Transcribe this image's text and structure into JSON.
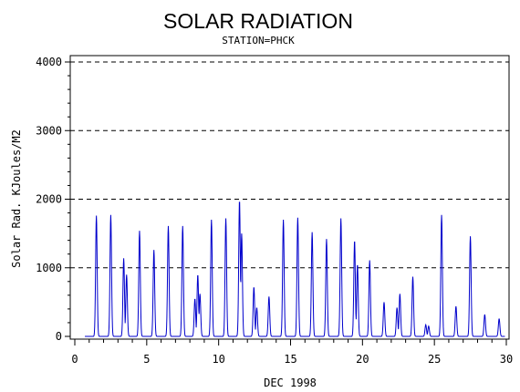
{
  "chart_data": {
    "type": "line",
    "title": "SOLAR RADIATION",
    "subtitle": "STATION=PHCK",
    "xlabel": "DEC 1998",
    "ylabel": "Solar Rad. KJoules/M2",
    "xlim": [
      0,
      30
    ],
    "ylim": [
      0,
      4000
    ],
    "x_ticks": [
      0,
      5,
      10,
      15,
      20,
      25,
      30
    ],
    "x_tick_labels": [
      "0",
      "5",
      "10",
      "15",
      "20",
      "25",
      "30"
    ],
    "y_ticks": [
      0,
      1000,
      2000,
      3000,
      4000
    ],
    "y_tick_labels": [
      "0",
      "1000",
      "2000",
      "3000",
      "4000"
    ],
    "grid": "horizontal dashed at y-ticks",
    "line_color": "#0000cc",
    "daily_peaks": [
      {
        "day": 1,
        "peaks": [
          [
            0.5,
            1760
          ]
        ]
      },
      {
        "day": 2,
        "peaks": [
          [
            0.5,
            1770
          ]
        ]
      },
      {
        "day": 3,
        "peaks": [
          [
            0.4,
            1140
          ],
          [
            0.6,
            900
          ]
        ]
      },
      {
        "day": 4,
        "peaks": [
          [
            0.5,
            1540
          ]
        ]
      },
      {
        "day": 5,
        "peaks": [
          [
            0.5,
            1260
          ]
        ]
      },
      {
        "day": 6,
        "peaks": [
          [
            0.5,
            1610
          ]
        ]
      },
      {
        "day": 7,
        "peaks": [
          [
            0.5,
            1610
          ]
        ]
      },
      {
        "day": 8,
        "peaks": [
          [
            0.35,
            550
          ],
          [
            0.55,
            900
          ],
          [
            0.7,
            620
          ]
        ]
      },
      {
        "day": 9,
        "peaks": [
          [
            0.5,
            1700
          ]
        ]
      },
      {
        "day": 10,
        "peaks": [
          [
            0.5,
            1720
          ]
        ]
      },
      {
        "day": 11,
        "peaks": [
          [
            0.45,
            1990
          ],
          [
            0.6,
            1500
          ]
        ]
      },
      {
        "day": 12,
        "peaks": [
          [
            0.45,
            720
          ],
          [
            0.65,
            420
          ]
        ]
      },
      {
        "day": 13,
        "peaks": [
          [
            0.5,
            580
          ]
        ]
      },
      {
        "day": 14,
        "peaks": [
          [
            0.5,
            1700
          ]
        ]
      },
      {
        "day": 15,
        "peaks": [
          [
            0.5,
            1730
          ]
        ]
      },
      {
        "day": 16,
        "peaks": [
          [
            0.5,
            1520
          ]
        ]
      },
      {
        "day": 17,
        "peaks": [
          [
            0.5,
            1420
          ]
        ]
      },
      {
        "day": 18,
        "peaks": [
          [
            0.5,
            1720
          ]
        ]
      },
      {
        "day": 19,
        "peaks": [
          [
            0.45,
            1400
          ],
          [
            0.65,
            1050
          ]
        ]
      },
      {
        "day": 20,
        "peaks": [
          [
            0.5,
            1110
          ]
        ]
      },
      {
        "day": 21,
        "peaks": [
          [
            0.5,
            500
          ]
        ]
      },
      {
        "day": 22,
        "peaks": [
          [
            0.4,
            420
          ],
          [
            0.6,
            620
          ]
        ]
      },
      {
        "day": 23,
        "peaks": [
          [
            0.5,
            870
          ]
        ]
      },
      {
        "day": 24,
        "peaks": [
          [
            0.4,
            170
          ],
          [
            0.6,
            150
          ]
        ]
      },
      {
        "day": 25,
        "peaks": [
          [
            0.5,
            1770
          ]
        ]
      },
      {
        "day": 26,
        "peaks": [
          [
            0.5,
            440
          ]
        ]
      },
      {
        "day": 27,
        "peaks": [
          [
            0.5,
            1460
          ]
        ]
      },
      {
        "day": 28,
        "peaks": [
          [
            0.5,
            320
          ]
        ]
      },
      {
        "day": 29,
        "peaks": [
          [
            0.5,
            260
          ]
        ]
      }
    ]
  }
}
